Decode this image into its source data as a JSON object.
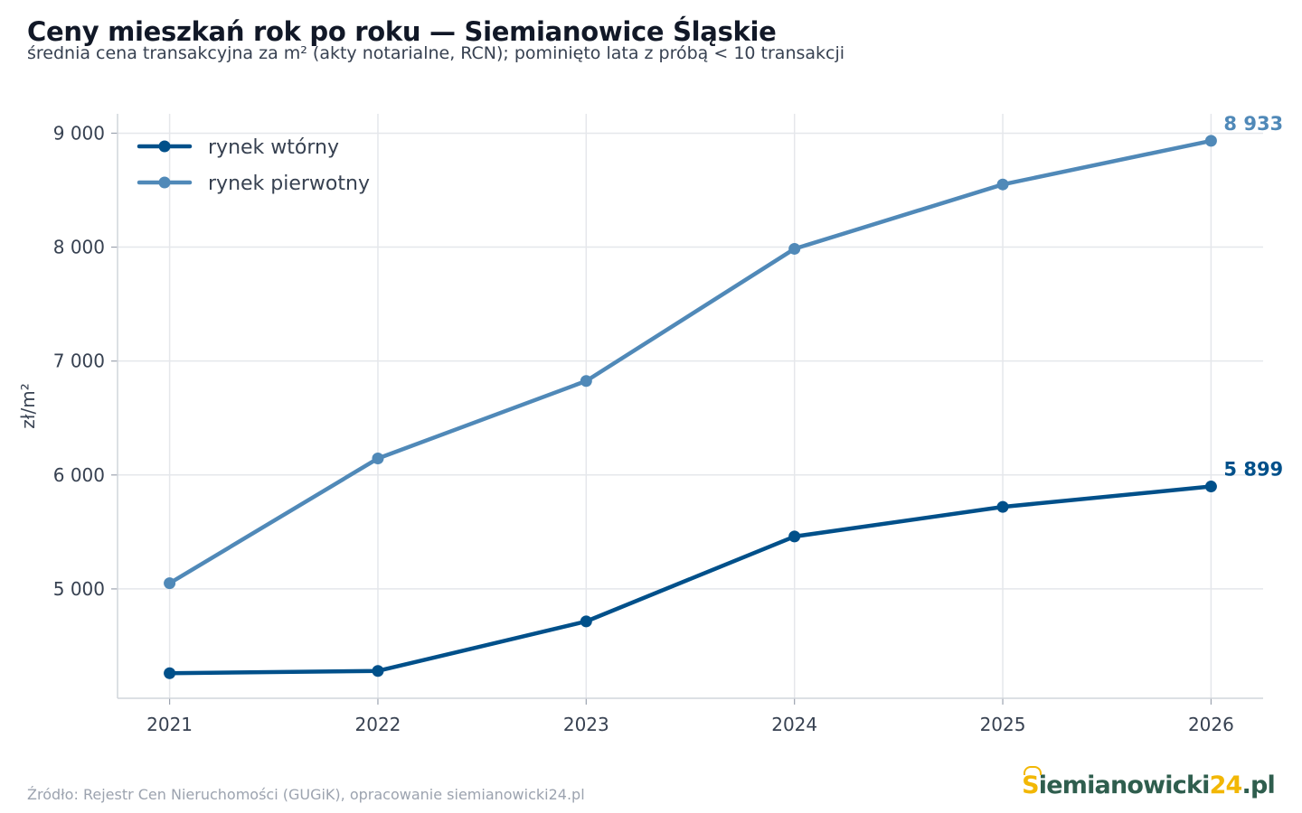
{
  "header": {
    "title": "Ceny mieszkań rok po roku — Siemianowice Śląskie",
    "subtitle": "średnia cena transakcyjna za m² (akty notarialne, RCN); pominięto lata z próbą < 10 transakcji"
  },
  "footer": {
    "source": "Źródło: Rejestr Cen Nieruchomości (GUGiK), opracowanie siemianowicki24.pl",
    "logo": {
      "s": "S",
      "mid": "iemianowicki",
      "num": "24",
      "tld": ".pl"
    }
  },
  "chart_data": {
    "type": "line",
    "title": "Ceny mieszkań rok po roku — Siemianowice Śląskie",
    "subtitle": "średnia cena transakcyjna za m² (akty notarialne, RCN); pominięto lata z próbą < 10 transakcji",
    "xlabel": "",
    "ylabel": "zł/m²",
    "x": [
      2021,
      2022,
      2023,
      2024,
      2025,
      2026
    ],
    "x_tick_labels": [
      "2021",
      "2022",
      "2023",
      "2024",
      "2025",
      "2026"
    ],
    "ylim": [
      4040,
      9170
    ],
    "xlim": [
      2020.75,
      2026.25
    ],
    "y_ticks": [
      5000,
      6000,
      7000,
      8000,
      9000
    ],
    "y_tick_labels": [
      "5 000",
      "6 000",
      "7 000",
      "8 000",
      "9 000"
    ],
    "grid": true,
    "legend_position": "top-left",
    "series": [
      {
        "name": "rynek wtórny",
        "color": "#00508a",
        "values": [
          4260,
          4280,
          4715,
          5460,
          5720,
          5899
        ],
        "end_label": "5 899"
      },
      {
        "name": "rynek pierwotny",
        "color": "#5089b8",
        "values": [
          5050,
          6145,
          6825,
          7985,
          8550,
          8933
        ],
        "end_label": "8 933"
      }
    ]
  }
}
